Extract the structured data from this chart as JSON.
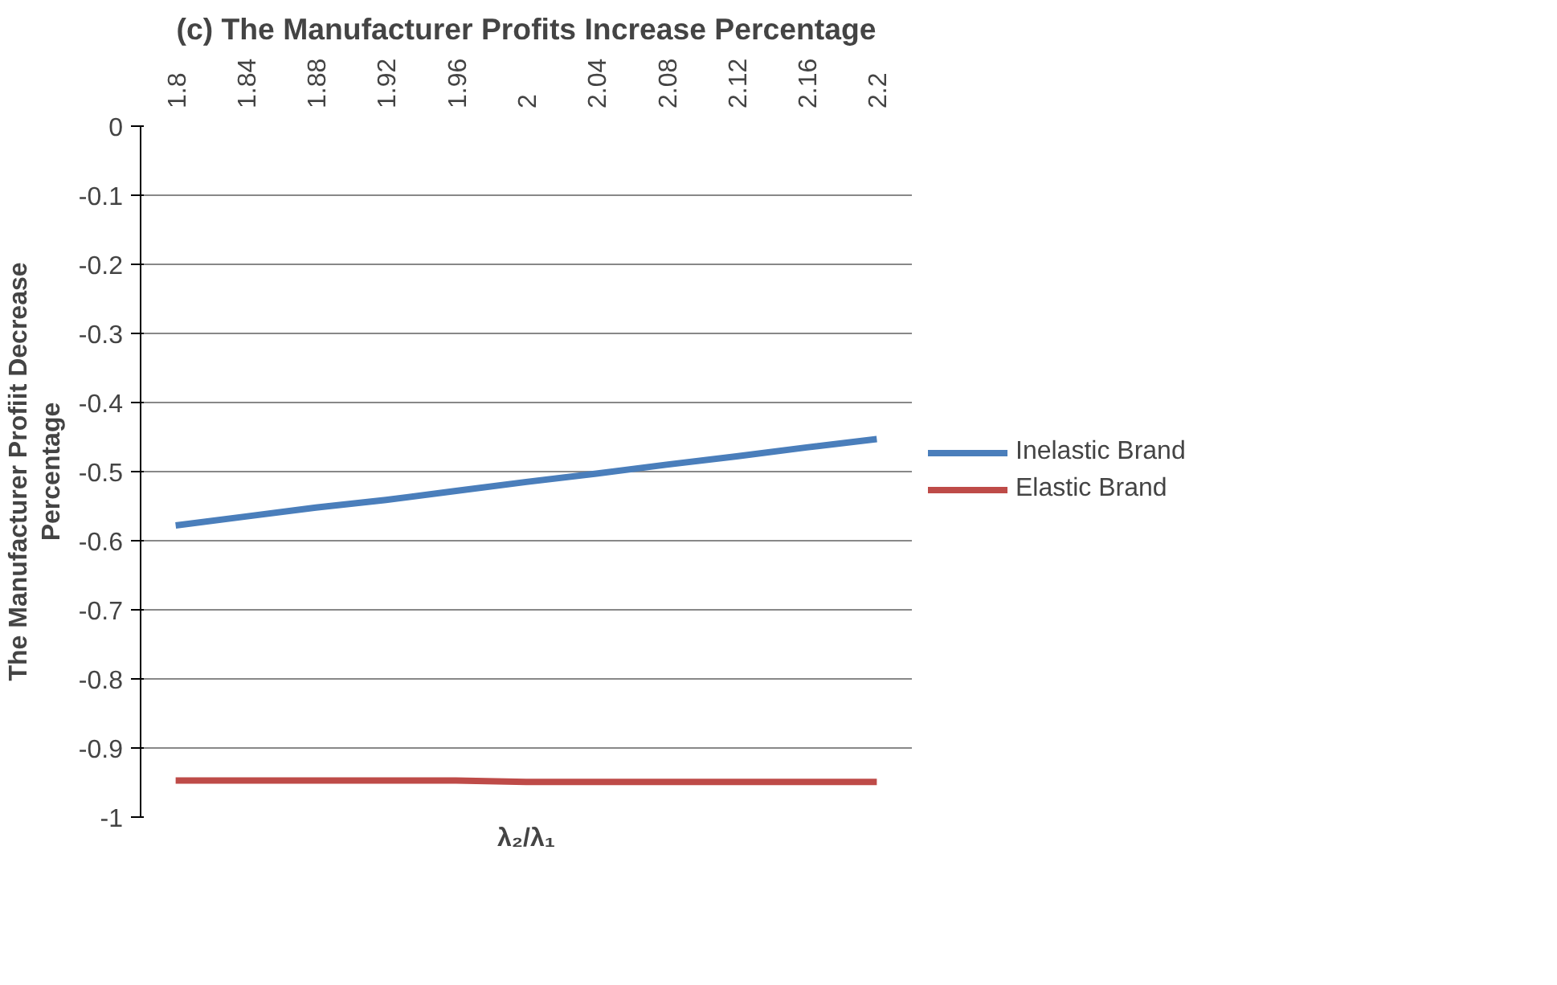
{
  "chart_data": {
    "type": "line",
    "title": "(c) The Manufacturer Profits Increase Percentage",
    "xlabel": "λ₂/λ₁",
    "ylabel": "The Manufacturer Profiit Decrease\nPercentage",
    "categories": [
      "1.8",
      "1.84",
      "1.88",
      "1.92",
      "1.96",
      "2",
      "2.04",
      "2.08",
      "2.12",
      "2.16",
      "2.2"
    ],
    "series": [
      {
        "name": "Inelastic Brand",
        "color": "#4a7ebb",
        "values": [
          -0.578,
          -0.565,
          -0.552,
          -0.541,
          -0.528,
          -0.515,
          -0.503,
          -0.49,
          -0.478,
          -0.465,
          -0.453
        ]
      },
      {
        "name": "Elastic Brand",
        "color": "#be4b48",
        "values": [
          -0.947,
          -0.947,
          -0.947,
          -0.947,
          -0.947,
          -0.949,
          -0.949,
          -0.949,
          -0.949,
          -0.949,
          -0.949
        ]
      }
    ],
    "ylim": [
      -1,
      0
    ],
    "yticks": [
      0,
      -0.1,
      -0.2,
      -0.3,
      -0.4,
      -0.5,
      -0.6,
      -0.7,
      -0.8,
      -0.9,
      -1
    ],
    "grid": "y",
    "legend": "right",
    "line_style": "solid"
  }
}
